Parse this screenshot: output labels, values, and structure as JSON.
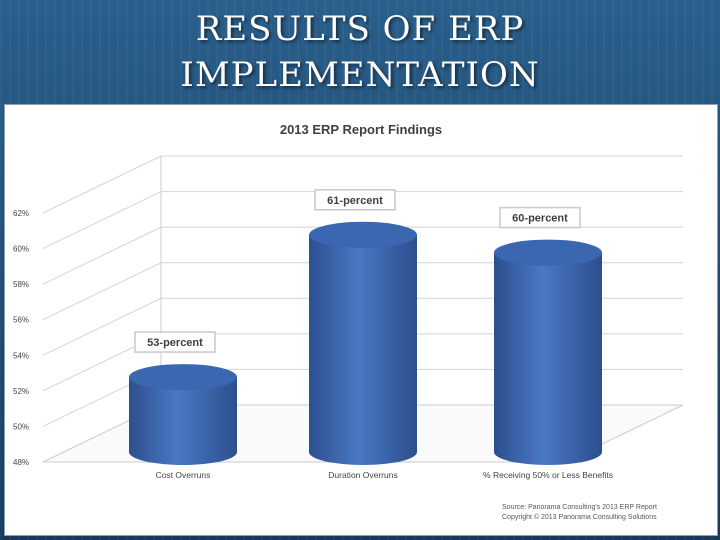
{
  "slide": {
    "title_line1": "RESULTS OF ERP",
    "title_line2": "IMPLEMENTATION"
  },
  "source": {
    "line1": "Source: Panorama Consulting's 2013 ERP Report",
    "line2": "Copyright © 2013 Panorama Consulting Solutions"
  },
  "colors": {
    "bar": "#4a78c4",
    "bar_dark": "#2c4f8e",
    "bar_top": "#3b66b0",
    "background": "#1f4d75"
  },
  "chart_data": {
    "type": "bar",
    "title": "2013 ERP Report Findings",
    "categories": [
      "Cost Overruns",
      "Duration Overruns",
      "% Receiving 50% or Less Benefits"
    ],
    "values": [
      53,
      61,
      60
    ],
    "data_labels": [
      "53-percent",
      "61-percent",
      "60-percent"
    ],
    "ylim": [
      48,
      62
    ],
    "yticks": [
      "48%",
      "50%",
      "52%",
      "54%",
      "56%",
      "58%",
      "60%",
      "62%"
    ],
    "xlabel": "",
    "ylabel": "",
    "grid": true,
    "legend": "none"
  }
}
